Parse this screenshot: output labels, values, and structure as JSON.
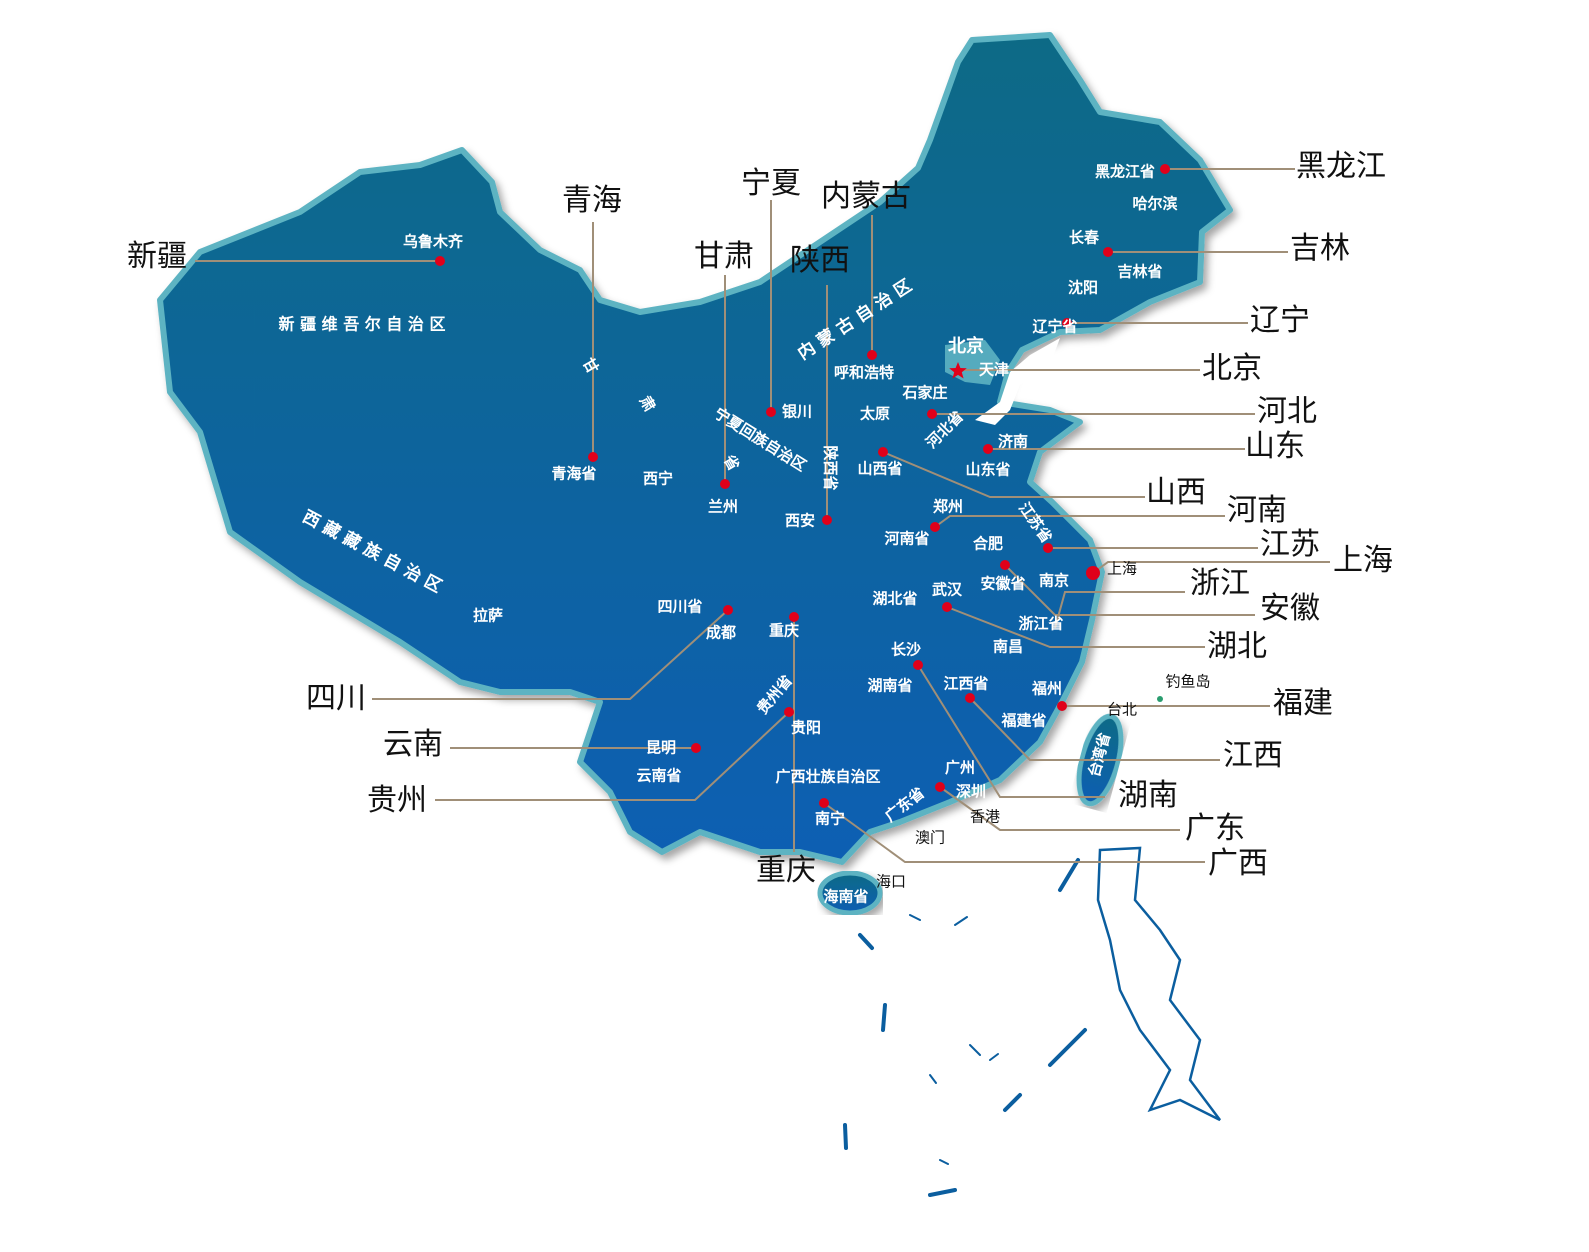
{
  "colors": {
    "land_top": "#0b6a86",
    "land_bottom": "#0a5fb3",
    "border": "#5db3c2",
    "dot": "#e0001a",
    "leader_line": "#a08f78",
    "highlight_label": "#f07d00"
  },
  "outer_labels": [
    "新疆",
    "青海",
    "宁夏",
    "内蒙古",
    "甘肃",
    "陕西",
    "黑龙江",
    "吉林",
    "辽宁",
    "北京",
    "河北",
    "山东",
    "山西",
    "河南",
    "江苏",
    "上海",
    "浙江",
    "安徽",
    "湖北",
    "福建",
    "江西",
    "湖南",
    "广东",
    "广西",
    "重庆",
    "四川",
    "云南",
    "贵州"
  ],
  "inner_labels": [
    "乌鲁木齐",
    "新 疆 维 吾 尔 自 治 区",
    "西 藏 藏 族 自 治 区",
    "拉萨",
    "甘",
    "肃",
    "省",
    "青海省",
    "西宁",
    "兰州",
    "宁夏回族自治区",
    "银川",
    "内 蒙 古 自 治 区",
    "呼和浩特",
    "陕西省",
    "西安",
    "太原",
    "石家庄",
    "北京",
    "天津",
    "河北省",
    "济南",
    "山西省",
    "山东省",
    "郑州",
    "江苏省",
    "河南省",
    "合肥",
    "安徽省",
    "南京",
    "上海",
    "湖北省",
    "武汉",
    "浙江省",
    "南昌",
    "四川省",
    "成都",
    "重庆",
    "长沙",
    "湖南省",
    "江西省",
    "福州",
    "福建省",
    "台北",
    "钓鱼岛",
    "台湾省",
    "贵州省",
    "贵阳",
    "昆明",
    "云南省",
    "广西壮族自治区",
    "广州",
    "深圳",
    "广东省",
    "香港",
    "澳门",
    "南宁",
    "海口",
    "海南省",
    "黑龙江省",
    "哈尔滨",
    "长春",
    "吉林省",
    "沈阳",
    "辽宁省"
  ]
}
